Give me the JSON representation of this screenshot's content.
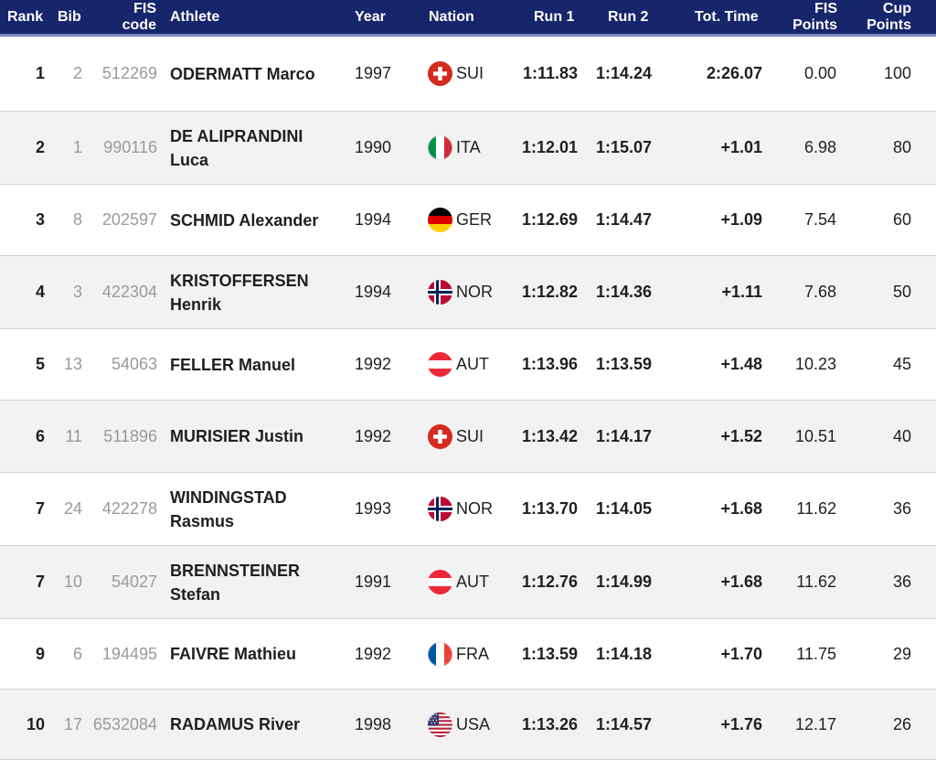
{
  "headers": {
    "rank": "Rank",
    "bib": "Bib",
    "fis_code_1": "FIS",
    "fis_code_2": "code",
    "athlete": "Athlete",
    "year": "Year",
    "nation": "Nation",
    "run1": "Run 1",
    "run2": "Run 2",
    "tot_time": "Tot. Time",
    "fis_points_1": "FIS",
    "fis_points_2": "Points",
    "cup_points_1": "Cup",
    "cup_points_2": "Points"
  },
  "colors": {
    "header_bg": "#17266b",
    "header_border": "#7a88c4",
    "row_alt": "#f2f2f2",
    "muted_text": "#9a9a9a"
  },
  "rows": [
    {
      "rank": "1",
      "bib": "2",
      "fis_code": "512269",
      "name_line1": "ODERMATT Marco",
      "name_line2": "",
      "year": "1997",
      "flag": "sui-flag-icon",
      "nation": "SUI",
      "run1": "1:11.83",
      "run2": "1:14.24",
      "tot_time": "2:26.07",
      "fis_points": "0.00",
      "cup_points": "100"
    },
    {
      "rank": "2",
      "bib": "1",
      "fis_code": "990116",
      "name_line1": "DE ALIPRANDINI",
      "name_line2": "Luca",
      "year": "1990",
      "flag": "ita-flag-icon",
      "nation": "ITA",
      "run1": "1:12.01",
      "run2": "1:15.07",
      "tot_time": "+1.01",
      "fis_points": "6.98",
      "cup_points": "80"
    },
    {
      "rank": "3",
      "bib": "8",
      "fis_code": "202597",
      "name_line1": "SCHMID Alexander",
      "name_line2": "",
      "year": "1994",
      "flag": "ger-flag-icon",
      "nation": "GER",
      "run1": "1:12.69",
      "run2": "1:14.47",
      "tot_time": "+1.09",
      "fis_points": "7.54",
      "cup_points": "60"
    },
    {
      "rank": "4",
      "bib": "3",
      "fis_code": "422304",
      "name_line1": "KRISTOFFERSEN",
      "name_line2": "Henrik",
      "year": "1994",
      "flag": "nor-flag-icon",
      "nation": "NOR",
      "run1": "1:12.82",
      "run2": "1:14.36",
      "tot_time": "+1.11",
      "fis_points": "7.68",
      "cup_points": "50"
    },
    {
      "rank": "5",
      "bib": "13",
      "fis_code": "54063",
      "name_line1": "FELLER Manuel",
      "name_line2": "",
      "year": "1992",
      "flag": "aut-flag-icon",
      "nation": "AUT",
      "run1": "1:13.96",
      "run2": "1:13.59",
      "tot_time": "+1.48",
      "fis_points": "10.23",
      "cup_points": "45"
    },
    {
      "rank": "6",
      "bib": "11",
      "fis_code": "511896",
      "name_line1": "MURISIER Justin",
      "name_line2": "",
      "year": "1992",
      "flag": "sui-flag-icon",
      "nation": "SUI",
      "run1": "1:13.42",
      "run2": "1:14.17",
      "tot_time": "+1.52",
      "fis_points": "10.51",
      "cup_points": "40"
    },
    {
      "rank": "7",
      "bib": "24",
      "fis_code": "422278",
      "name_line1": "WINDINGSTAD",
      "name_line2": "Rasmus",
      "year": "1993",
      "flag": "nor-flag-icon",
      "nation": "NOR",
      "run1": "1:13.70",
      "run2": "1:14.05",
      "tot_time": "+1.68",
      "fis_points": "11.62",
      "cup_points": "36"
    },
    {
      "rank": "7",
      "bib": "10",
      "fis_code": "54027",
      "name_line1": "BRENNSTEINER",
      "name_line2": "Stefan",
      "year": "1991",
      "flag": "aut-flag-icon",
      "nation": "AUT",
      "run1": "1:12.76",
      "run2": "1:14.99",
      "tot_time": "+1.68",
      "fis_points": "11.62",
      "cup_points": "36"
    },
    {
      "rank": "9",
      "bib": "6",
      "fis_code": "194495",
      "name_line1": "FAIVRE Mathieu",
      "name_line2": "",
      "year": "1992",
      "flag": "fra-flag-icon",
      "nation": "FRA",
      "run1": "1:13.59",
      "run2": "1:14.18",
      "tot_time": "+1.70",
      "fis_points": "11.75",
      "cup_points": "29"
    },
    {
      "rank": "10",
      "bib": "17",
      "fis_code": "6532084",
      "name_line1": "RADAMUS River",
      "name_line2": "",
      "year": "1998",
      "flag": "usa-flag-icon",
      "nation": "USA",
      "run1": "1:13.26",
      "run2": "1:14.57",
      "tot_time": "+1.76",
      "fis_points": "12.17",
      "cup_points": "26"
    }
  ]
}
